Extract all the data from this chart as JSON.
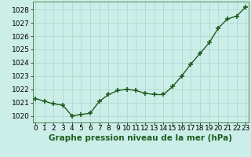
{
  "title": "Graphe pression niveau de la mer (hPa)",
  "x_hours": [
    0,
    1,
    2,
    3,
    4,
    5,
    6,
    7,
    8,
    9,
    10,
    11,
    12,
    13,
    14,
    15,
    16,
    17,
    18,
    19,
    20,
    21,
    22,
    23
  ],
  "series": [
    {
      "label": "main_detailed",
      "y": [
        1021.3,
        1021.1,
        1020.9,
        1020.8,
        1020.0,
        1020.1,
        1020.2,
        1021.1,
        1021.6,
        1021.9,
        1022.0,
        1021.9,
        1021.7,
        1021.6,
        1021.6,
        1022.2,
        1023.0,
        1023.9,
        1024.7,
        1025.5,
        1026.6,
        1027.3,
        1027.5,
        1028.2
      ],
      "has_markers": true
    },
    {
      "label": "line_straight1",
      "y": [
        1021.3,
        null,
        null,
        null,
        null,
        null,
        null,
        null,
        null,
        null,
        null,
        null,
        null,
        null,
        null,
        null,
        null,
        null,
        null,
        null,
        null,
        null,
        null,
        1028.2
      ],
      "has_markers": false
    },
    {
      "label": "line_from4",
      "y": [
        null,
        null,
        null,
        null,
        1020.0,
        null,
        null,
        null,
        null,
        null,
        null,
        null,
        null,
        null,
        null,
        null,
        null,
        null,
        null,
        1025.5,
        null,
        null,
        null,
        1028.2
      ],
      "has_markers": false
    },
    {
      "label": "line_from3_to19",
      "y": [
        null,
        null,
        null,
        1020.8,
        null,
        null,
        null,
        null,
        null,
        null,
        null,
        null,
        null,
        null,
        null,
        null,
        null,
        null,
        null,
        null,
        1026.6,
        null,
        null,
        1028.2
      ],
      "has_markers": false
    }
  ],
  "ylim": [
    1019.5,
    1028.6
  ],
  "yticks": [
    1020,
    1021,
    1022,
    1023,
    1024,
    1025,
    1026,
    1027,
    1028
  ],
  "xlim": [
    -0.3,
    23.3
  ],
  "bg_color": "#cceee8",
  "grid_color": "#aad4cc",
  "line_color": "#1e5c1e",
  "marker": "+",
  "linewidth": 1.0,
  "markersize": 4,
  "markeredgewidth": 1.2,
  "xlabel_fontsize": 7.5,
  "tick_fontsize": 6.5
}
